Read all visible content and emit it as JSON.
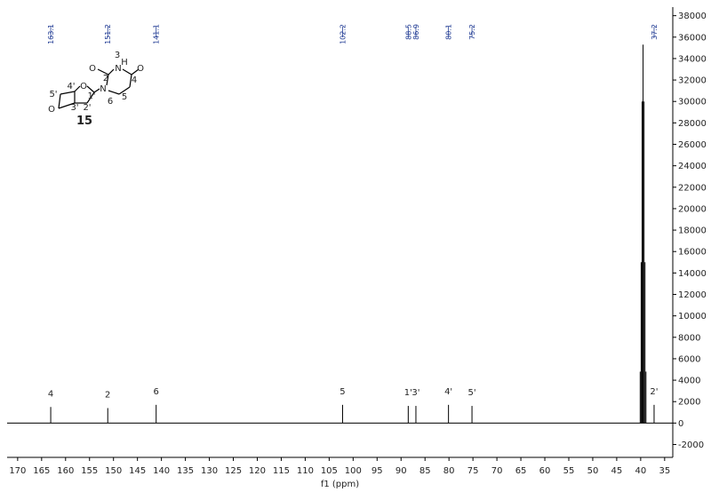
{
  "chart_data": {
    "type": "nmr",
    "xlabel": "f1 (ppm)",
    "xlim": [
      172.2,
      33.3
    ],
    "ylim": [
      -3200,
      38800
    ],
    "xticks": [
      170,
      165,
      160,
      155,
      150,
      145,
      140,
      135,
      130,
      125,
      120,
      115,
      110,
      105,
      100,
      95,
      90,
      85,
      80,
      75,
      70,
      65,
      60,
      55,
      50,
      45,
      40,
      35
    ],
    "yticks": [
      -2000,
      0,
      2000,
      4000,
      6000,
      8000,
      10000,
      12000,
      14000,
      16000,
      18000,
      20000,
      22000,
      24000,
      26000,
      28000,
      30000,
      32000,
      34000,
      36000,
      38000
    ],
    "series": [
      {
        "name": "peaks",
        "color": "#000000",
        "label_color": "#1f3a93",
        "x": [
          163.1,
          151.2,
          141.1,
          102.2,
          88.5,
          86.9,
          80.1,
          75.2,
          37.2
        ],
        "values": [
          1500,
          1400,
          1700,
          1700,
          1600,
          1600,
          1700,
          1600,
          1700
        ],
        "assignments": [
          "4",
          "2",
          "6",
          "5",
          "1'",
          "3'",
          "4'",
          "5'",
          "2'"
        ]
      },
      {
        "name": "solvent",
        "color": "#000000",
        "x": [
          40.1,
          39.9,
          39.7,
          39.5,
          39.3,
          39.1,
          38.9
        ],
        "values": [
          4800,
          15000,
          30000,
          35300,
          30000,
          15000,
          4800
        ]
      }
    ],
    "structure_labels": [
      "5'",
      "4'",
      "O",
      "1'",
      "N",
      "2",
      "O",
      "3",
      "N",
      "H",
      "4",
      "O",
      "5",
      "6",
      "O",
      "3'",
      "2'",
      "15"
    ]
  }
}
